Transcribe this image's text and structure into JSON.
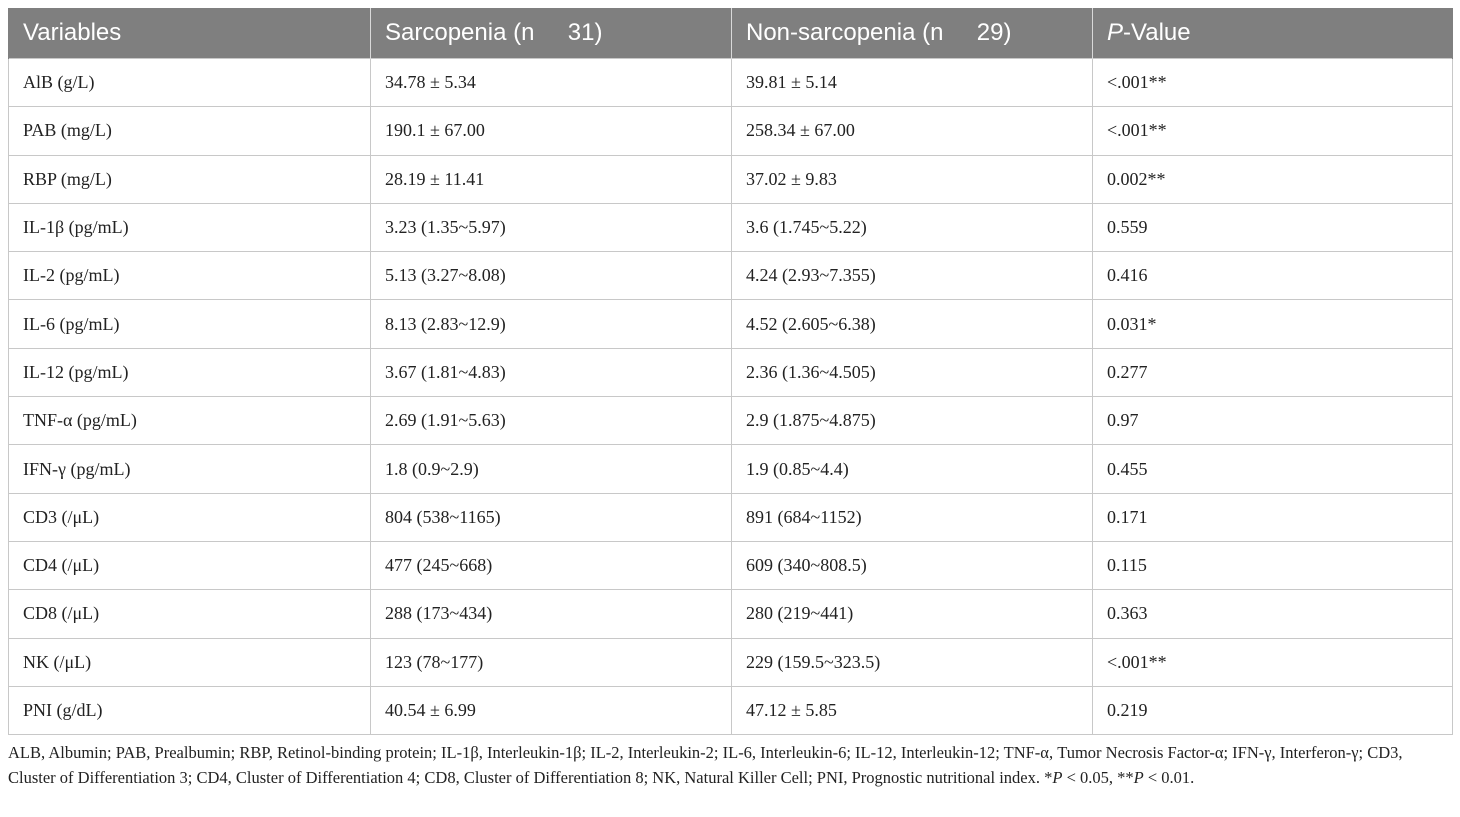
{
  "table": {
    "headers": {
      "variables": "Variables",
      "sarcopenia_label": "Sarcopenia (n",
      "sarcopenia_n": "31)",
      "non_sarcopenia_label": "Non-sarcopenia (n",
      "non_sarcopenia_n": "29)",
      "p_italic": "P",
      "p_rest": "-Value"
    },
    "rows": [
      {
        "variable": "AlB (g/L)",
        "sarcopenia": "34.78 ± 5.34",
        "non_sarcopenia": "39.81 ± 5.14",
        "p_value": "<.001**"
      },
      {
        "variable": "PAB (mg/L)",
        "sarcopenia": "190.1 ± 67.00",
        "non_sarcopenia": "258.34 ± 67.00",
        "p_value": "<.001**"
      },
      {
        "variable": "RBP (mg/L)",
        "sarcopenia": "28.19 ± 11.41",
        "non_sarcopenia": "37.02 ± 9.83",
        "p_value": "0.002**"
      },
      {
        "variable": "IL-1β (pg/mL)",
        "sarcopenia": "3.23 (1.35~5.97)",
        "non_sarcopenia": "3.6 (1.745~5.22)",
        "p_value": "0.559"
      },
      {
        "variable": "IL-2 (pg/mL)",
        "sarcopenia": "5.13 (3.27~8.08)",
        "non_sarcopenia": "4.24 (2.93~7.355)",
        "p_value": "0.416"
      },
      {
        "variable": "IL-6 (pg/mL)",
        "sarcopenia": "8.13 (2.83~12.9)",
        "non_sarcopenia": "4.52 (2.605~6.38)",
        "p_value": "0.031*"
      },
      {
        "variable": "IL-12 (pg/mL)",
        "sarcopenia": "3.67 (1.81~4.83)",
        "non_sarcopenia": "2.36 (1.36~4.505)",
        "p_value": "0.277"
      },
      {
        "variable": "TNF-α (pg/mL)",
        "sarcopenia": "2.69 (1.91~5.63)",
        "non_sarcopenia": "2.9 (1.875~4.875)",
        "p_value": "0.97"
      },
      {
        "variable": "IFN-γ (pg/mL)",
        "sarcopenia": "1.8 (0.9~2.9)",
        "non_sarcopenia": "1.9 (0.85~4.4)",
        "p_value": "0.455"
      },
      {
        "variable": "CD3 (/μL)",
        "sarcopenia": "804 (538~1165)",
        "non_sarcopenia": "891 (684~1152)",
        "p_value": "0.171"
      },
      {
        "variable": "CD4 (/μL)",
        "sarcopenia": "477 (245~668)",
        "non_sarcopenia": "609 (340~808.5)",
        "p_value": "0.115"
      },
      {
        "variable": "CD8 (/μL)",
        "sarcopenia": "288 (173~434)",
        "non_sarcopenia": "280 (219~441)",
        "p_value": "0.363"
      },
      {
        "variable": "NK (/μL)",
        "sarcopenia": "123 (78~177)",
        "non_sarcopenia": "229 (159.5~323.5)",
        "p_value": "<.001**"
      },
      {
        "variable": "PNI (g/dL)",
        "sarcopenia": "40.54 ± 6.99",
        "non_sarcopenia": "47.12 ± 5.85",
        "p_value": "0.219"
      }
    ]
  },
  "footnote": {
    "definitions": "ALB, Albumin; PAB, Prealbumin; RBP, Retinol-binding protein; IL-1β, Interleukin-1β; IL-2, Interleukin-2; IL-6,  Interleukin-6; IL-12, Interleukin-12; TNF-α, Tumor Necrosis Factor-α; IFN-γ, Interferon-γ; CD3, Cluster of Differentiation 3; CD4, Cluster of Differentiation 4; CD8, Cluster of Differentiation 8; NK, Natural Killer Cell; PNI, Prognostic nutritional index.",
    "sig1_prefix": "*",
    "sig1_p": "P",
    "sig1_rest": " < 0.05,",
    "sig2_prefix": "**",
    "sig2_p": "P",
    "sig2_rest": " < 0.01."
  }
}
